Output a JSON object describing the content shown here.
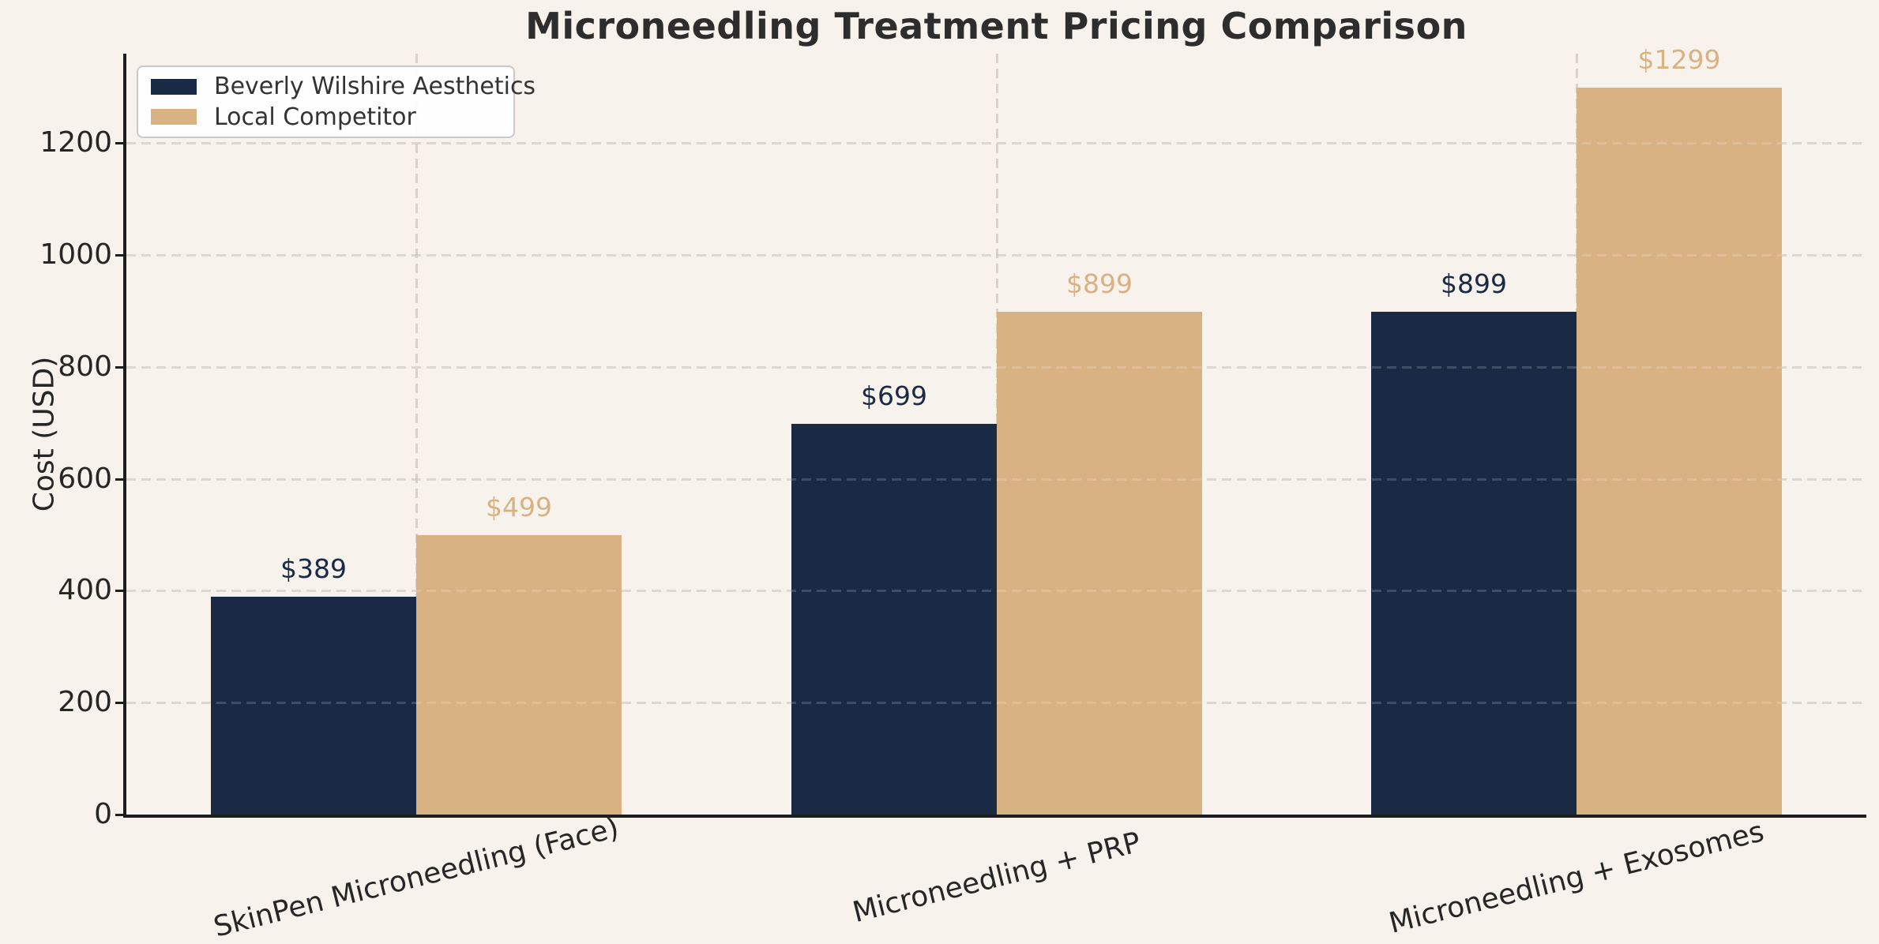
{
  "chart_data": {
    "type": "bar",
    "title": "Microneedling Treatment Pricing Comparison",
    "xlabel": "",
    "ylabel": "Cost (USD)",
    "categories": [
      "SkinPen Microneedling (Face)",
      "Microneedling + PRP",
      "Microneedling + Exosomes"
    ],
    "series": [
      {
        "name": "Beverly Wilshire Aesthetics",
        "color": "#1b2a44",
        "values": [
          389,
          699,
          899
        ],
        "value_labels": [
          "$389",
          "$699",
          "$899"
        ]
      },
      {
        "name": "Local Competitor",
        "color": "#d8b283",
        "values": [
          499,
          899,
          1299
        ],
        "value_labels": [
          "$499",
          "$899",
          "$1299"
        ]
      }
    ],
    "ylim": [
      0,
      1360
    ],
    "yticks": [
      0,
      200,
      400,
      600,
      800,
      1000,
      1200
    ],
    "grid": "dashed",
    "legend_position": "upper left",
    "background_color": "#f7f2ec",
    "axis_color": "#1d1d1d"
  }
}
